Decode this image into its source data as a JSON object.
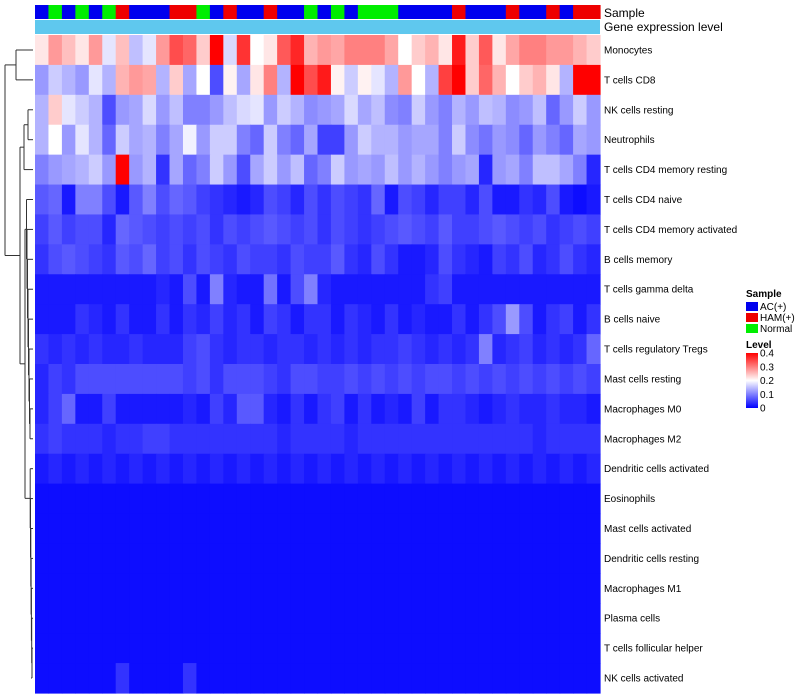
{
  "chart_data": {
    "type": "heatmap",
    "track_labels": {
      "sample": "Sample",
      "gene_expression": "Gene expression level"
    },
    "sample_groups": [
      "A",
      "C",
      "A",
      "C",
      "A",
      "C",
      "B",
      "A",
      "A",
      "A",
      "B",
      "B",
      "C",
      "A",
      "B",
      "A",
      "A",
      "B",
      "A",
      "A",
      "C",
      "A",
      "C",
      "A",
      "C",
      "C",
      "C",
      "A",
      "A",
      "A",
      "A",
      "B",
      "A",
      "A",
      "A",
      "B",
      "A",
      "A",
      "B",
      "A",
      "B",
      "B"
    ],
    "rows": [
      "Monocytes",
      "T cells CD8",
      "NK cells resting",
      "Neutrophils",
      "T cells CD4 memory resting",
      "T cells CD4 naive",
      "T cells CD4 memory activated",
      "B cells memory",
      "T cells gamma delta",
      "B cells naive",
      "T cells regulatory  Tregs",
      "Mast cells resting",
      "Macrophages M0",
      "Macrophages M2",
      "Dendritic cells activated",
      "Eosinophils",
      "Mast cells activated",
      "Dendritic cells resting",
      "Macrophages M1",
      "Plasma cells",
      "T cells follicular helper",
      "NK cells activated"
    ],
    "values": [
      [
        0.22,
        0.28,
        0.25,
        0.22,
        0.28,
        0.18,
        0.25,
        0.15,
        0.18,
        0.28,
        0.34,
        0.32,
        0.24,
        0.4,
        0.17,
        0.36,
        0.2,
        0.22,
        0.33,
        0.37,
        0.26,
        0.28,
        0.27,
        0.3,
        0.3,
        0.3,
        0.27,
        0.2,
        0.24,
        0.26,
        0.22,
        0.38,
        0.24,
        0.33,
        0.22,
        0.27,
        0.3,
        0.3,
        0.28,
        0.28,
        0.26,
        0.24
      ],
      [
        0.12,
        0.16,
        0.14,
        0.12,
        0.18,
        0.14,
        0.26,
        0.28,
        0.27,
        0.14,
        0.24,
        0.13,
        0.2,
        0.06,
        0.21,
        0.13,
        0.22,
        0.3,
        0.14,
        0.4,
        0.34,
        0.38,
        0.21,
        0.16,
        0.21,
        0.18,
        0.14,
        0.28,
        0.2,
        0.14,
        0.35,
        0.4,
        0.24,
        0.32,
        0.26,
        0.2,
        0.24,
        0.26,
        0.22,
        0.14,
        0.4,
        0.4
      ],
      [
        0.14,
        0.24,
        0.18,
        0.16,
        0.14,
        0.06,
        0.12,
        0.13,
        0.17,
        0.12,
        0.15,
        0.1,
        0.1,
        0.12,
        0.15,
        0.17,
        0.18,
        0.12,
        0.16,
        0.14,
        0.11,
        0.12,
        0.13,
        0.17,
        0.13,
        0.15,
        0.11,
        0.1,
        0.16,
        0.12,
        0.1,
        0.14,
        0.12,
        0.15,
        0.14,
        0.11,
        0.12,
        0.15,
        0.08,
        0.12,
        0.16,
        0.12
      ],
      [
        0.14,
        0.2,
        0.12,
        0.18,
        0.14,
        0.08,
        0.16,
        0.13,
        0.14,
        0.1,
        0.13,
        0.19,
        0.12,
        0.16,
        0.16,
        0.1,
        0.08,
        0.16,
        0.1,
        0.08,
        0.13,
        0.05,
        0.05,
        0.12,
        0.16,
        0.14,
        0.14,
        0.12,
        0.13,
        0.13,
        0.1,
        0.16,
        0.11,
        0.09,
        0.12,
        0.11,
        0.08,
        0.12,
        0.1,
        0.08,
        0.13,
        0.12
      ],
      [
        0.1,
        0.12,
        0.13,
        0.14,
        0.16,
        0.12,
        0.4,
        0.12,
        0.14,
        0.04,
        0.13,
        0.08,
        0.1,
        0.16,
        0.12,
        0.06,
        0.13,
        0.16,
        0.12,
        0.15,
        0.08,
        0.1,
        0.16,
        0.12,
        0.13,
        0.12,
        0.15,
        0.12,
        0.14,
        0.12,
        0.1,
        0.12,
        0.13,
        0.03,
        0.12,
        0.13,
        0.1,
        0.15,
        0.15,
        0.13,
        0.1,
        0.03
      ],
      [
        0.07,
        0.08,
        0.02,
        0.1,
        0.1,
        0.06,
        0.02,
        0.07,
        0.1,
        0.06,
        0.08,
        0.07,
        0.05,
        0.04,
        0.03,
        0.02,
        0.03,
        0.06,
        0.05,
        0.03,
        0.06,
        0.04,
        0.06,
        0.05,
        0.04,
        0.08,
        0.02,
        0.06,
        0.05,
        0.03,
        0.05,
        0.05,
        0.03,
        0.06,
        0.02,
        0.02,
        0.04,
        0.03,
        0.06,
        0.02,
        0.01,
        0.02
      ],
      [
        0.05,
        0.07,
        0.05,
        0.06,
        0.06,
        0.03,
        0.08,
        0.07,
        0.06,
        0.05,
        0.06,
        0.05,
        0.06,
        0.04,
        0.06,
        0.05,
        0.06,
        0.07,
        0.06,
        0.05,
        0.06,
        0.04,
        0.06,
        0.05,
        0.04,
        0.05,
        0.06,
        0.07,
        0.06,
        0.05,
        0.07,
        0.05,
        0.05,
        0.06,
        0.07,
        0.06,
        0.05,
        0.06,
        0.04,
        0.05,
        0.06,
        0.05
      ],
      [
        0.04,
        0.06,
        0.07,
        0.06,
        0.05,
        0.04,
        0.07,
        0.06,
        0.08,
        0.05,
        0.06,
        0.04,
        0.06,
        0.05,
        0.04,
        0.06,
        0.05,
        0.05,
        0.04,
        0.06,
        0.05,
        0.05,
        0.07,
        0.04,
        0.03,
        0.06,
        0.04,
        0.02,
        0.02,
        0.03,
        0.06,
        0.04,
        0.03,
        0.02,
        0.05,
        0.04,
        0.06,
        0.03,
        0.04,
        0.06,
        0.04,
        0.03
      ],
      [
        0.02,
        0.02,
        0.02,
        0.02,
        0.02,
        0.02,
        0.02,
        0.02,
        0.02,
        0.03,
        0.02,
        0.06,
        0.02,
        0.1,
        0.03,
        0.02,
        0.02,
        0.09,
        0.02,
        0.06,
        0.1,
        0.03,
        0.02,
        0.02,
        0.02,
        0.02,
        0.02,
        0.02,
        0.02,
        0.04,
        0.05,
        0.02,
        0.02,
        0.02,
        0.02,
        0.02,
        0.02,
        0.02,
        0.02,
        0.02,
        0.02,
        0.02
      ],
      [
        0.02,
        0.02,
        0.02,
        0.04,
        0.03,
        0.02,
        0.04,
        0.02,
        0.02,
        0.04,
        0.02,
        0.04,
        0.03,
        0.05,
        0.03,
        0.04,
        0.02,
        0.05,
        0.04,
        0.02,
        0.04,
        0.04,
        0.02,
        0.04,
        0.03,
        0.02,
        0.04,
        0.02,
        0.03,
        0.02,
        0.02,
        0.04,
        0.02,
        0.04,
        0.06,
        0.12,
        0.06,
        0.02,
        0.04,
        0.05,
        0.02,
        0.04
      ],
      [
        0.04,
        0.03,
        0.04,
        0.03,
        0.04,
        0.03,
        0.03,
        0.04,
        0.03,
        0.03,
        0.03,
        0.05,
        0.06,
        0.04,
        0.03,
        0.04,
        0.04,
        0.03,
        0.04,
        0.04,
        0.03,
        0.04,
        0.03,
        0.04,
        0.03,
        0.04,
        0.04,
        0.05,
        0.04,
        0.03,
        0.04,
        0.03,
        0.04,
        0.1,
        0.03,
        0.04,
        0.05,
        0.03,
        0.04,
        0.03,
        0.04,
        0.08
      ],
      [
        0.03,
        0.05,
        0.04,
        0.06,
        0.06,
        0.06,
        0.06,
        0.06,
        0.06,
        0.06,
        0.06,
        0.05,
        0.06,
        0.04,
        0.06,
        0.06,
        0.06,
        0.05,
        0.04,
        0.06,
        0.06,
        0.05,
        0.05,
        0.06,
        0.05,
        0.06,
        0.05,
        0.06,
        0.05,
        0.06,
        0.06,
        0.05,
        0.06,
        0.05,
        0.06,
        0.05,
        0.06,
        0.05,
        0.06,
        0.05,
        0.06,
        0.05
      ],
      [
        0.03,
        0.05,
        0.08,
        0.02,
        0.02,
        0.05,
        0.02,
        0.02,
        0.02,
        0.02,
        0.02,
        0.03,
        0.02,
        0.05,
        0.03,
        0.07,
        0.07,
        0.03,
        0.02,
        0.04,
        0.02,
        0.04,
        0.05,
        0.02,
        0.04,
        0.02,
        0.03,
        0.02,
        0.05,
        0.02,
        0.04,
        0.04,
        0.03,
        0.02,
        0.03,
        0.04,
        0.03,
        0.03,
        0.04,
        0.03,
        0.03,
        0.02
      ],
      [
        0.04,
        0.05,
        0.04,
        0.04,
        0.04,
        0.03,
        0.04,
        0.04,
        0.05,
        0.05,
        0.04,
        0.04,
        0.04,
        0.04,
        0.04,
        0.04,
        0.04,
        0.04,
        0.03,
        0.04,
        0.04,
        0.04,
        0.04,
        0.03,
        0.04,
        0.04,
        0.04,
        0.04,
        0.04,
        0.04,
        0.04,
        0.04,
        0.04,
        0.04,
        0.04,
        0.04,
        0.04,
        0.03,
        0.04,
        0.04,
        0.04,
        0.04
      ],
      [
        0.02,
        0.03,
        0.02,
        0.03,
        0.02,
        0.03,
        0.02,
        0.03,
        0.02,
        0.03,
        0.02,
        0.03,
        0.02,
        0.03,
        0.02,
        0.03,
        0.02,
        0.03,
        0.02,
        0.03,
        0.02,
        0.03,
        0.02,
        0.03,
        0.02,
        0.03,
        0.02,
        0.03,
        0.02,
        0.03,
        0.02,
        0.03,
        0.02,
        0.03,
        0.02,
        0.03,
        0.02,
        0.03,
        0.02,
        0.03,
        0.02,
        0.03
      ],
      [
        0.01,
        0.01,
        0.01,
        0.01,
        0.01,
        0.01,
        0.01,
        0.01,
        0.01,
        0.01,
        0.01,
        0.01,
        0.01,
        0.01,
        0.01,
        0.01,
        0.01,
        0.01,
        0.01,
        0.01,
        0.01,
        0.01,
        0.01,
        0.01,
        0.01,
        0.01,
        0.01,
        0.01,
        0.01,
        0.01,
        0.01,
        0.01,
        0.01,
        0.01,
        0.01,
        0.01,
        0.01,
        0.01,
        0.01,
        0.01,
        0.01,
        0.01
      ],
      [
        0.01,
        0.01,
        0.01,
        0.01,
        0.01,
        0.01,
        0.01,
        0.01,
        0.01,
        0.01,
        0.01,
        0.01,
        0.01,
        0.01,
        0.01,
        0.01,
        0.01,
        0.01,
        0.01,
        0.01,
        0.01,
        0.01,
        0.01,
        0.01,
        0.01,
        0.01,
        0.01,
        0.01,
        0.01,
        0.01,
        0.01,
        0.01,
        0.01,
        0.01,
        0.01,
        0.01,
        0.01,
        0.01,
        0.01,
        0.01,
        0.01,
        0.01
      ],
      [
        0.01,
        0.01,
        0.01,
        0.01,
        0.01,
        0.01,
        0.01,
        0.01,
        0.01,
        0.01,
        0.01,
        0.01,
        0.01,
        0.01,
        0.01,
        0.01,
        0.01,
        0.01,
        0.01,
        0.01,
        0.01,
        0.01,
        0.01,
        0.01,
        0.01,
        0.01,
        0.01,
        0.01,
        0.01,
        0.01,
        0.01,
        0.01,
        0.01,
        0.01,
        0.01,
        0.01,
        0.01,
        0.01,
        0.01,
        0.01,
        0.01,
        0.01
      ],
      [
        0.01,
        0.01,
        0.01,
        0.01,
        0.01,
        0.01,
        0.01,
        0.01,
        0.01,
        0.01,
        0.01,
        0.01,
        0.01,
        0.01,
        0.01,
        0.01,
        0.01,
        0.01,
        0.01,
        0.01,
        0.01,
        0.01,
        0.01,
        0.01,
        0.01,
        0.01,
        0.01,
        0.01,
        0.01,
        0.01,
        0.01,
        0.01,
        0.01,
        0.01,
        0.01,
        0.01,
        0.01,
        0.01,
        0.01,
        0.01,
        0.01,
        0.01
      ],
      [
        0.01,
        0.01,
        0.01,
        0.01,
        0.01,
        0.01,
        0.01,
        0.01,
        0.01,
        0.01,
        0.01,
        0.01,
        0.01,
        0.01,
        0.01,
        0.01,
        0.01,
        0.01,
        0.01,
        0.01,
        0.01,
        0.01,
        0.01,
        0.01,
        0.01,
        0.01,
        0.01,
        0.01,
        0.01,
        0.01,
        0.01,
        0.01,
        0.01,
        0.01,
        0.01,
        0.01,
        0.01,
        0.01,
        0.01,
        0.01,
        0.01,
        0.01
      ],
      [
        0.01,
        0.01,
        0.01,
        0.01,
        0.01,
        0.01,
        0.01,
        0.01,
        0.01,
        0.01,
        0.01,
        0.01,
        0.01,
        0.01,
        0.01,
        0.01,
        0.01,
        0.01,
        0.01,
        0.01,
        0.01,
        0.01,
        0.01,
        0.01,
        0.01,
        0.01,
        0.01,
        0.01,
        0.01,
        0.01,
        0.01,
        0.01,
        0.01,
        0.01,
        0.01,
        0.01,
        0.01,
        0.01,
        0.01,
        0.01,
        0.01,
        0.01
      ],
      [
        0.01,
        0.01,
        0.01,
        0.01,
        0.01,
        0.01,
        0.04,
        0.01,
        0.01,
        0.01,
        0.01,
        0.04,
        0.01,
        0.01,
        0.01,
        0.01,
        0.01,
        0.01,
        0.01,
        0.01,
        0.01,
        0.01,
        0.01,
        0.01,
        0.01,
        0.01,
        0.01,
        0.01,
        0.01,
        0.01,
        0.01,
        0.01,
        0.01,
        0.01,
        0.01,
        0.01,
        0.01,
        0.01,
        0.01,
        0.01,
        0.01,
        0.01
      ]
    ],
    "scale": {
      "min": 0,
      "max": 0.4,
      "ticks": [
        "0",
        "0.1",
        "0.2",
        "0.3",
        "0.4"
      ],
      "low_color": "#0000ff",
      "mid_color": "#ffffff",
      "high_color": "#ff0000"
    },
    "legend": {
      "sample_title": "Sample",
      "sample_entries": [
        {
          "key": "A",
          "label": "AC(+)",
          "color": "#0000ee"
        },
        {
          "key": "B",
          "label": "HAM(+)",
          "color": "#ee0000"
        },
        {
          "key": "C",
          "label": "Normal",
          "color": "#00ee00"
        }
      ],
      "level_title": "Level"
    },
    "gene_track_color": "#5fc8ee",
    "dendrogram_side": "left"
  }
}
